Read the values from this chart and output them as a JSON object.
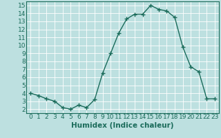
{
  "x": [
    0,
    1,
    2,
    3,
    4,
    5,
    6,
    7,
    8,
    9,
    10,
    11,
    12,
    13,
    14,
    15,
    16,
    17,
    18,
    19,
    20,
    21,
    22,
    23
  ],
  "y": [
    4.0,
    3.7,
    3.3,
    3.0,
    2.2,
    2.0,
    2.5,
    2.2,
    3.2,
    6.5,
    9.0,
    11.5,
    13.3,
    13.9,
    13.9,
    15.0,
    14.5,
    14.3,
    13.5,
    9.8,
    7.3,
    6.7,
    3.3,
    3.3
  ],
  "xlabel": "Humidex (Indice chaleur)",
  "ylim": [
    1.5,
    15.5
  ],
  "xlim": [
    -0.5,
    23.5
  ],
  "yticks": [
    2,
    3,
    4,
    5,
    6,
    7,
    8,
    9,
    10,
    11,
    12,
    13,
    14,
    15
  ],
  "xticks": [
    0,
    1,
    2,
    3,
    4,
    5,
    6,
    7,
    8,
    9,
    10,
    11,
    12,
    13,
    14,
    15,
    16,
    17,
    18,
    19,
    20,
    21,
    22,
    23
  ],
  "line_color": "#1a6b5a",
  "marker": "+",
  "marker_size": 4,
  "marker_edge_width": 1.0,
  "line_width": 1.0,
  "bg_color": "#bde0e0",
  "grid_color": "#ffffff",
  "axis_label_color": "#1a6b5a",
  "tick_color": "#1a6b5a",
  "xlabel_fontsize": 7.5,
  "tick_fontsize": 6.5,
  "spine_color": "#1a6b5a"
}
